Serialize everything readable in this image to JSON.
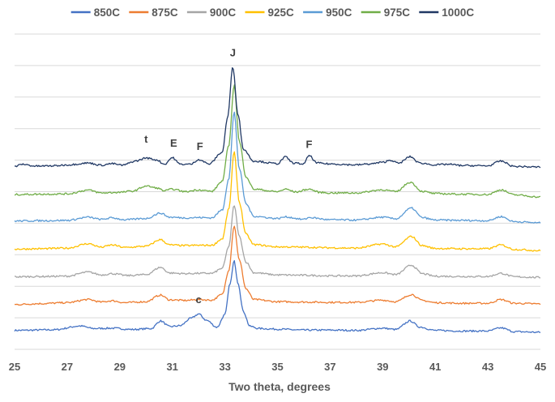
{
  "chart_data": {
    "type": "line",
    "title": "",
    "xlabel": "Two theta, degrees",
    "ylabel": "",
    "xlim": [
      25,
      45
    ],
    "ylim": [
      0,
      100
    ],
    "x_ticks": [
      25,
      27,
      29,
      31,
      33,
      35,
      37,
      39,
      41,
      43,
      45
    ],
    "grid": "horizontal",
    "legend_position": "top",
    "series": [
      {
        "name": "850C",
        "color": "#4472C4",
        "offset": 4,
        "points": [
          [
            25,
            2
          ],
          [
            26.5,
            2.2
          ],
          [
            27.5,
            3.4
          ],
          [
            28,
            2.6
          ],
          [
            28.7,
            2.7
          ],
          [
            29.5,
            2.3
          ],
          [
            30.2,
            2.6
          ],
          [
            30.55,
            5.0
          ],
          [
            30.9,
            3.2
          ],
          [
            31.3,
            3.5
          ],
          [
            31.7,
            5.8
          ],
          [
            32.0,
            7.2
          ],
          [
            32.3,
            5.2
          ],
          [
            32.7,
            3.0
          ],
          [
            33.0,
            7.0
          ],
          [
            33.2,
            17
          ],
          [
            33.35,
            24
          ],
          [
            33.5,
            17
          ],
          [
            33.7,
            8
          ],
          [
            33.95,
            3.3
          ],
          [
            34.3,
            2.6
          ],
          [
            35,
            2.4
          ],
          [
            36,
            2.1
          ],
          [
            37,
            2.1
          ],
          [
            38,
            2.0
          ],
          [
            39,
            2.7
          ],
          [
            39.5,
            2.3
          ],
          [
            40.05,
            5.0
          ],
          [
            40.4,
            3.1
          ],
          [
            41,
            2.0
          ],
          [
            42,
            1.8
          ],
          [
            43,
            1.8
          ],
          [
            43.5,
            2.8
          ],
          [
            44,
            1.6
          ],
          [
            45,
            1.4
          ]
        ],
        "text_labels": [
          {
            "x": 32.0,
            "y": 10.6,
            "text": "c"
          }
        ]
      },
      {
        "name": "875C",
        "color": "#ED7D31",
        "offset": 13.2,
        "points": [
          [
            25,
            1
          ],
          [
            26,
            1.3
          ],
          [
            27,
            1.6
          ],
          [
            27.8,
            2.6
          ],
          [
            28.3,
            1.8
          ],
          [
            28.7,
            2.2
          ],
          [
            29.2,
            1.6
          ],
          [
            30,
            1.9
          ],
          [
            30.55,
            4.0
          ],
          [
            30.9,
            2.5
          ],
          [
            31.5,
            2.3
          ],
          [
            32.0,
            2.6
          ],
          [
            32.5,
            2.4
          ],
          [
            32.9,
            4.2
          ],
          [
            33.15,
            12
          ],
          [
            33.35,
            26
          ],
          [
            33.55,
            15
          ],
          [
            33.8,
            6
          ],
          [
            34.1,
            2.6
          ],
          [
            35,
            1.9
          ],
          [
            36,
            1.8
          ],
          [
            37,
            1.7
          ],
          [
            38,
            1.7
          ],
          [
            39,
            2.4
          ],
          [
            39.5,
            1.9
          ],
          [
            40.1,
            4.2
          ],
          [
            40.5,
            2.3
          ],
          [
            41,
            1.6
          ],
          [
            42,
            1.4
          ],
          [
            43,
            1.4
          ],
          [
            43.5,
            2.6
          ],
          [
            44,
            1.4
          ],
          [
            45,
            1.2
          ]
        ]
      },
      {
        "name": "900C",
        "color": "#A5A5A5",
        "offset": 21.7,
        "points": [
          [
            25,
            1.3
          ],
          [
            26,
            1.4
          ],
          [
            27,
            1.5
          ],
          [
            27.8,
            2.8
          ],
          [
            28.3,
            1.9
          ],
          [
            28.7,
            2.3
          ],
          [
            29.3,
            1.7
          ],
          [
            30,
            2.0
          ],
          [
            30.55,
            4.3
          ],
          [
            30.9,
            2.5
          ],
          [
            31.5,
            2.3
          ],
          [
            32.0,
            2.4
          ],
          [
            32.5,
            2.4
          ],
          [
            32.9,
            4.0
          ],
          [
            33.15,
            11
          ],
          [
            33.35,
            24
          ],
          [
            33.55,
            14
          ],
          [
            33.8,
            6
          ],
          [
            34.1,
            2.6
          ],
          [
            35,
            1.9
          ],
          [
            36,
            1.8
          ],
          [
            37,
            1.6
          ],
          [
            38,
            1.6
          ],
          [
            39,
            2.6
          ],
          [
            39.5,
            2.0
          ],
          [
            40.1,
            5.0
          ],
          [
            40.5,
            2.3
          ],
          [
            41,
            1.5
          ],
          [
            42,
            1.4
          ],
          [
            43,
            1.4
          ],
          [
            43.5,
            2.4
          ],
          [
            44,
            1.3
          ],
          [
            45,
            1.1
          ]
        ]
      },
      {
        "name": "925C",
        "color": "#FFC000",
        "offset": 30.5,
        "points": [
          [
            25,
            1.3
          ],
          [
            26,
            1.4
          ],
          [
            27,
            1.6
          ],
          [
            27.8,
            3.0
          ],
          [
            28.3,
            1.9
          ],
          [
            28.7,
            2.6
          ],
          [
            29.2,
            1.8
          ],
          [
            30,
            2.2
          ],
          [
            30.55,
            4.3
          ],
          [
            30.9,
            2.6
          ],
          [
            31.5,
            2.4
          ],
          [
            32.0,
            2.5
          ],
          [
            32.5,
            2.5
          ],
          [
            32.9,
            4.5
          ],
          [
            33.15,
            14
          ],
          [
            33.35,
            32
          ],
          [
            33.55,
            16
          ],
          [
            33.8,
            6
          ],
          [
            34.1,
            2.7
          ],
          [
            35,
            2.0
          ],
          [
            36,
            1.9
          ],
          [
            37,
            1.7
          ],
          [
            38,
            1.6
          ],
          [
            39,
            2.9
          ],
          [
            39.5,
            2.0
          ],
          [
            40.1,
            5.3
          ],
          [
            40.5,
            2.4
          ],
          [
            41,
            1.5
          ],
          [
            42,
            1.4
          ],
          [
            43,
            1.4
          ],
          [
            43.5,
            2.6
          ],
          [
            44,
            1.2
          ],
          [
            45,
            0.8
          ]
        ]
      },
      {
        "name": "950C",
        "color": "#5B9BD5",
        "offset": 39.2,
        "points": [
          [
            25,
            1.5
          ],
          [
            26,
            1.6
          ],
          [
            27,
            1.7
          ],
          [
            27.8,
            2.7
          ],
          [
            28.3,
            2.0
          ],
          [
            28.7,
            2.5
          ],
          [
            29.2,
            1.9
          ],
          [
            30,
            2.3
          ],
          [
            30.55,
            4.0
          ],
          [
            30.9,
            2.7
          ],
          [
            31.5,
            2.5
          ],
          [
            32.0,
            2.6
          ],
          [
            32.5,
            2.5
          ],
          [
            32.9,
            5
          ],
          [
            33.15,
            15
          ],
          [
            33.35,
            36
          ],
          [
            33.55,
            18
          ],
          [
            33.8,
            7
          ],
          [
            34.1,
            3.0
          ],
          [
            35,
            2.3
          ],
          [
            35.3,
            2.8
          ],
          [
            36,
            2.0
          ],
          [
            36.2,
            2.6
          ],
          [
            37,
            1.9
          ],
          [
            38,
            1.8
          ],
          [
            39,
            2.7
          ],
          [
            39.5,
            2.2
          ],
          [
            40.1,
            5.6
          ],
          [
            40.5,
            2.6
          ],
          [
            41,
            1.8
          ],
          [
            42,
            1.7
          ],
          [
            43,
            1.6
          ],
          [
            43.5,
            2.9
          ],
          [
            44,
            1.3
          ],
          [
            45,
            0.9
          ]
        ]
      },
      {
        "name": "975C",
        "color": "#70AD47",
        "offset": 47.8,
        "points": [
          [
            25,
            1.3
          ],
          [
            26,
            1.4
          ],
          [
            27,
            1.5
          ],
          [
            27.8,
            2.7
          ],
          [
            28.3,
            1.8
          ],
          [
            29.0,
            2.0
          ],
          [
            29.5,
            2.4
          ],
          [
            30.0,
            4.0
          ],
          [
            30.4,
            3.4
          ],
          [
            30.7,
            2.5
          ],
          [
            31.0,
            3.0
          ],
          [
            31.5,
            2.2
          ],
          [
            32.0,
            2.8
          ],
          [
            32.5,
            2.3
          ],
          [
            32.9,
            5.5
          ],
          [
            33.15,
            17
          ],
          [
            33.35,
            36
          ],
          [
            33.55,
            18
          ],
          [
            33.8,
            7
          ],
          [
            34.1,
            3.0
          ],
          [
            35,
            2.2
          ],
          [
            35.3,
            3.0
          ],
          [
            35.7,
            2.1
          ],
          [
            36.2,
            3.0
          ],
          [
            36.6,
            2.0
          ],
          [
            37,
            1.8
          ],
          [
            38,
            1.8
          ],
          [
            39,
            2.8
          ],
          [
            39.5,
            2.2
          ],
          [
            40.05,
            5.2
          ],
          [
            40.5,
            2.3
          ],
          [
            41,
            1.6
          ],
          [
            42,
            1.4
          ],
          [
            43,
            1.3
          ],
          [
            43.5,
            2.8
          ],
          [
            44,
            1.2
          ],
          [
            45,
            0.5
          ]
        ]
      },
      {
        "name": "1000C",
        "color": "#203864",
        "offset": 56.5,
        "points": [
          [
            25,
            1.5
          ],
          [
            25.3,
            2.2
          ],
          [
            25.8,
            1.6
          ],
          [
            26.5,
            1.7
          ],
          [
            27.0,
            2.0
          ],
          [
            27.8,
            2.6
          ],
          [
            28.3,
            1.9
          ],
          [
            28.7,
            2.4
          ],
          [
            29.1,
            1.9
          ],
          [
            29.6,
            3.2
          ],
          [
            30.0,
            4.2
          ],
          [
            30.4,
            3.6
          ],
          [
            30.7,
            2.2
          ],
          [
            31.0,
            4.3
          ],
          [
            31.3,
            2.2
          ],
          [
            31.7,
            2.2
          ],
          [
            32.0,
            3.7
          ],
          [
            32.4,
            2.3
          ],
          [
            32.9,
            6
          ],
          [
            33.1,
            17
          ],
          [
            33.3,
            33
          ],
          [
            33.5,
            18
          ],
          [
            33.7,
            7
          ],
          [
            34.1,
            3.2
          ],
          [
            35,
            2.4
          ],
          [
            35.3,
            4.5
          ],
          [
            35.6,
            2.6
          ],
          [
            36.0,
            2.3
          ],
          [
            36.2,
            5.0
          ],
          [
            36.5,
            2.6
          ],
          [
            37,
            2.3
          ],
          [
            38,
            2.0
          ],
          [
            38.5,
            2.3
          ],
          [
            39.0,
            2.8
          ],
          [
            39.3,
            3.5
          ],
          [
            39.6,
            2.5
          ],
          [
            40.05,
            4.6
          ],
          [
            40.4,
            2.6
          ],
          [
            41,
            2.0
          ],
          [
            41.5,
            2.2
          ],
          [
            42,
            1.8
          ],
          [
            43,
            1.7
          ],
          [
            43.5,
            3.2
          ],
          [
            44,
            1.5
          ],
          [
            45,
            1.3
          ]
        ],
        "text_labels": [
          {
            "x": 30.0,
            "y": 9.0,
            "text": "t"
          },
          {
            "x": 31.05,
            "y": 7.8,
            "text": "E"
          },
          {
            "x": 32.05,
            "y": 6.8,
            "text": "F"
          },
          {
            "x": 33.3,
            "y": 36.4,
            "text": "J"
          },
          {
            "x": 36.2,
            "y": 7.4,
            "text": "F"
          }
        ]
      }
    ]
  }
}
